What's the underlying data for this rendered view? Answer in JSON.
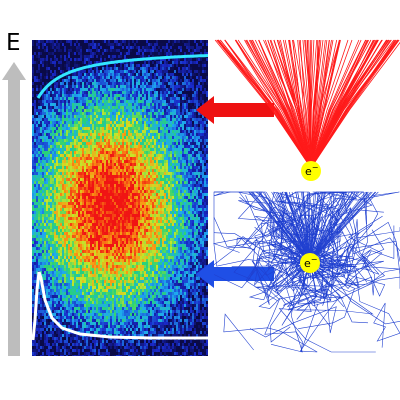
{
  "axis": {
    "label": "E"
  },
  "electrons": {
    "top": {
      "label": "e",
      "superscript": "−"
    },
    "bottom": {
      "label": "e",
      "superscript": "−"
    }
  },
  "colors": {
    "background_dark": "#0a0a3a",
    "energy_arrow": "#bdbdbd",
    "cyan_curve": "#33e6ff",
    "white_curve": "#ffffff",
    "forward_scatter": "#ff1a1a",
    "back_scatter": "#1f3fd6",
    "electron_dot": "#ffff00"
  },
  "icons": {
    "red_arrow": "arrow-left-icon",
    "blue_arrow": "arrow-left-icon"
  }
}
